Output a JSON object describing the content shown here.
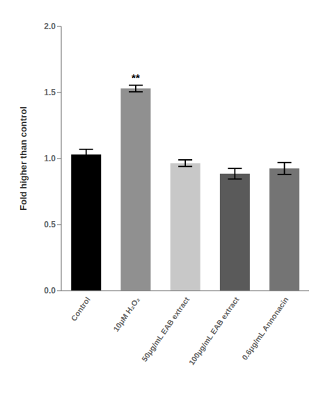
{
  "chart_data": {
    "type": "bar",
    "categories": [
      "Control",
      "10μM H₂O₂",
      "50μg/mL EAB extract",
      "100μg/mL EAB extract",
      "0.6μg/mL Annonacin"
    ],
    "values": [
      1.03,
      1.53,
      0.965,
      0.885,
      0.925
    ],
    "errors": [
      0.04,
      0.025,
      0.025,
      0.04,
      0.045
    ],
    "colors": [
      "#000000",
      "#909090",
      "#c8c8c8",
      "#5a5a5a",
      "#747474"
    ],
    "ylabel": "Fold higher than control",
    "ylim": [
      0.0,
      2.0
    ],
    "yticks": [
      {
        "value": 0.0,
        "label": "0.0"
      },
      {
        "value": 0.5,
        "label": "0.5"
      },
      {
        "value": 1.0,
        "label": "1.0"
      },
      {
        "value": 1.5,
        "label": "1.5"
      },
      {
        "value": 2.0,
        "label": "2.0"
      }
    ],
    "annotations": [
      {
        "text": "**",
        "category": "10μM H₂O₂"
      }
    ],
    "grid": false
  }
}
